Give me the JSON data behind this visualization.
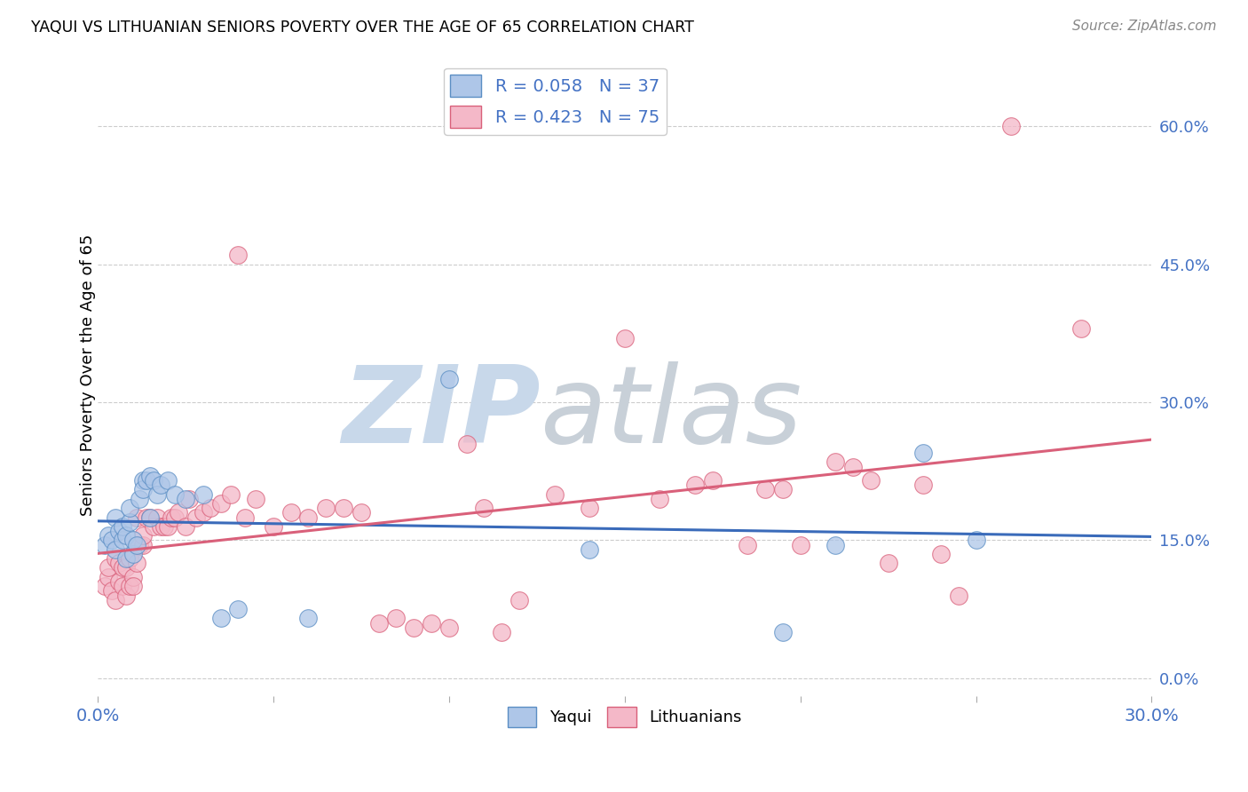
{
  "title": "YAQUI VS LITHUANIAN SENIORS POVERTY OVER THE AGE OF 65 CORRELATION CHART",
  "source": "Source: ZipAtlas.com",
  "ylabel_label": "Seniors Poverty Over the Age of 65",
  "xlim": [
    0.0,
    0.3
  ],
  "ylim": [
    -0.02,
    0.68
  ],
  "ytick_vals": [
    0.0,
    0.15,
    0.3,
    0.45,
    0.6
  ],
  "ytick_labels": [
    "0.0%",
    "15.0%",
    "30.0%",
    "45.0%",
    "60.0%"
  ],
  "xtick_vals": [
    0.0,
    0.05,
    0.1,
    0.15,
    0.2,
    0.25,
    0.3
  ],
  "xtick_show": [
    0.0,
    0.3
  ],
  "legend_entries": [
    {
      "label": "R = 0.058   N = 37",
      "color": "#aec6e8",
      "edge": "#5b8ec4"
    },
    {
      "label": "R = 0.423   N = 75",
      "color": "#f4b8c8",
      "edge": "#d9607a"
    }
  ],
  "legend_labels": [
    "Yaqui",
    "Lithuanians"
  ],
  "yaqui_x": [
    0.002,
    0.003,
    0.004,
    0.005,
    0.005,
    0.006,
    0.007,
    0.007,
    0.008,
    0.008,
    0.009,
    0.009,
    0.01,
    0.01,
    0.011,
    0.012,
    0.013,
    0.013,
    0.014,
    0.015,
    0.015,
    0.016,
    0.017,
    0.018,
    0.02,
    0.022,
    0.025,
    0.03,
    0.035,
    0.04,
    0.06,
    0.1,
    0.14,
    0.195,
    0.21,
    0.235,
    0.25
  ],
  "yaqui_y": [
    0.145,
    0.155,
    0.15,
    0.14,
    0.175,
    0.16,
    0.15,
    0.165,
    0.13,
    0.155,
    0.17,
    0.185,
    0.135,
    0.15,
    0.145,
    0.195,
    0.215,
    0.205,
    0.215,
    0.22,
    0.175,
    0.215,
    0.2,
    0.21,
    0.215,
    0.2,
    0.195,
    0.2,
    0.065,
    0.075,
    0.065,
    0.325,
    0.14,
    0.05,
    0.145,
    0.245,
    0.15
  ],
  "lithuanian_x": [
    0.002,
    0.003,
    0.003,
    0.004,
    0.005,
    0.005,
    0.006,
    0.006,
    0.007,
    0.007,
    0.008,
    0.008,
    0.009,
    0.009,
    0.01,
    0.01,
    0.011,
    0.011,
    0.012,
    0.013,
    0.013,
    0.014,
    0.015,
    0.016,
    0.017,
    0.018,
    0.019,
    0.02,
    0.021,
    0.022,
    0.023,
    0.025,
    0.026,
    0.028,
    0.03,
    0.032,
    0.035,
    0.038,
    0.04,
    0.042,
    0.045,
    0.05,
    0.055,
    0.06,
    0.065,
    0.07,
    0.075,
    0.08,
    0.085,
    0.09,
    0.095,
    0.1,
    0.105,
    0.11,
    0.115,
    0.12,
    0.13,
    0.14,
    0.15,
    0.16,
    0.17,
    0.175,
    0.185,
    0.19,
    0.195,
    0.2,
    0.21,
    0.215,
    0.22,
    0.225,
    0.235,
    0.24,
    0.245,
    0.26,
    0.28
  ],
  "lithuanian_y": [
    0.1,
    0.11,
    0.12,
    0.095,
    0.085,
    0.13,
    0.105,
    0.125,
    0.1,
    0.12,
    0.09,
    0.12,
    0.1,
    0.13,
    0.11,
    0.1,
    0.125,
    0.175,
    0.145,
    0.145,
    0.155,
    0.175,
    0.175,
    0.165,
    0.175,
    0.165,
    0.165,
    0.165,
    0.175,
    0.175,
    0.18,
    0.165,
    0.195,
    0.175,
    0.18,
    0.185,
    0.19,
    0.2,
    0.46,
    0.175,
    0.195,
    0.165,
    0.18,
    0.175,
    0.185,
    0.185,
    0.18,
    0.06,
    0.065,
    0.055,
    0.06,
    0.055,
    0.255,
    0.185,
    0.05,
    0.085,
    0.2,
    0.185,
    0.37,
    0.195,
    0.21,
    0.215,
    0.145,
    0.205,
    0.205,
    0.145,
    0.235,
    0.23,
    0.215,
    0.125,
    0.21,
    0.135,
    0.09,
    0.6,
    0.38
  ],
  "yaqui_color": "#aec6e8",
  "yaqui_edge": "#5b8ec4",
  "lithuanian_color": "#f4b8c8",
  "lithuanian_edge": "#d9607a",
  "yaqui_line_color": "#3a6bba",
  "lithuanian_line_color": "#d9607a",
  "background_color": "#ffffff",
  "watermark_zip": "ZIP",
  "watermark_atlas": "atlas",
  "watermark_color_zip": "#c8d8ea",
  "watermark_color_atlas": "#c8d0d8",
  "grid_color": "#cccccc"
}
